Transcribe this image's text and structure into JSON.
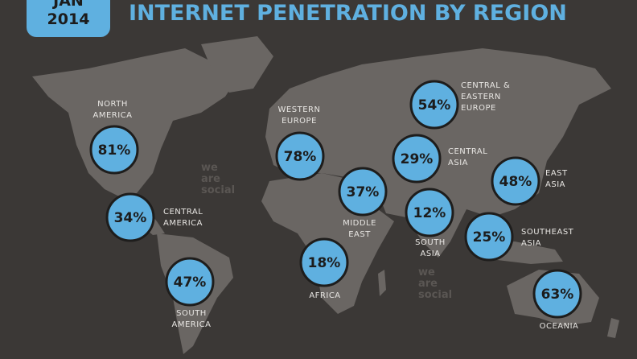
{
  "header": {
    "badge": [
      "JAN",
      "2014"
    ],
    "title": "INTERNET PENETRATION BY REGION"
  },
  "regions": [
    {
      "label": [
        "NORTH",
        "AMERICA"
      ],
      "value": "81%"
    },
    {
      "label": [
        "CENTRAL",
        "AMERICA"
      ],
      "value": "34%"
    },
    {
      "label": [
        "SOUTH",
        "AMERICA"
      ],
      "value": "47%"
    },
    {
      "label": [
        "WESTERN",
        "EUROPE"
      ],
      "value": "78%"
    },
    {
      "label": [
        "MIDDLE",
        "EAST"
      ],
      "value": "37%"
    },
    {
      "label": [
        "AFRICA"
      ],
      "value": "18%"
    },
    {
      "label": [
        "CENTRAL",
        "ASIA"
      ],
      "value": "29%"
    },
    {
      "label": [
        "SOUTH",
        "ASIA"
      ],
      "value": "12%"
    },
    {
      "label": [
        "CENTRAL &",
        "EASTERN",
        "EUROPE"
      ],
      "value": "54%"
    },
    {
      "label": [
        "EAST",
        "ASIA"
      ],
      "value": "48%"
    },
    {
      "label": [
        "SOUTHEAST",
        "ASIA"
      ],
      "value": "25%"
    },
    {
      "label": [
        "OCEANIA"
      ],
      "value": "63%"
    }
  ],
  "watermark": [
    "we",
    "are",
    "social"
  ]
}
